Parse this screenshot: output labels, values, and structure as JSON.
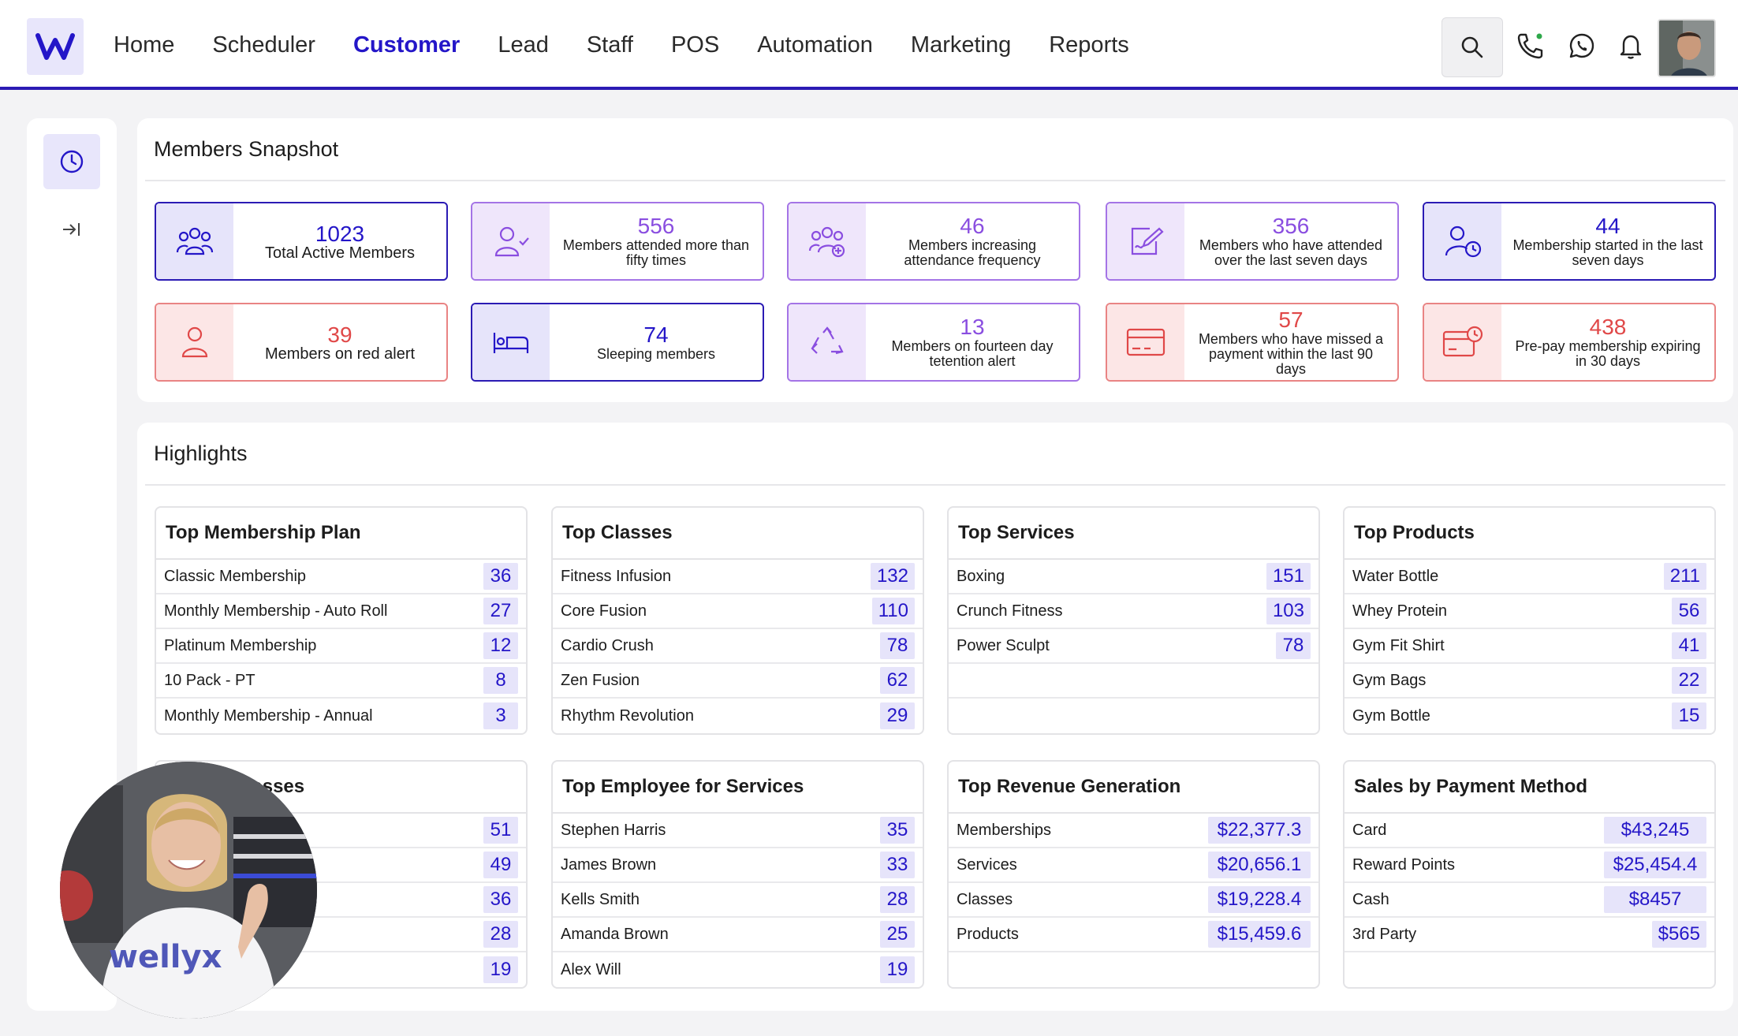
{
  "nav": {
    "items": [
      "Home",
      "Scheduler",
      "Customer",
      "Lead",
      "Staff",
      "POS",
      "Automation",
      "Marketing",
      "Reports"
    ],
    "active": "Customer"
  },
  "snapshot": {
    "title": "Members Snapshot",
    "cards": [
      {
        "value": "1023",
        "label": "Total Active Members",
        "color": "blue",
        "icon": "members-group-icon"
      },
      {
        "value": "556",
        "label": "Members attended more than fifty times",
        "color": "purple",
        "icon": "user-check-icon"
      },
      {
        "value": "46",
        "label": "Members increasing attendance frequency",
        "color": "purple",
        "icon": "users-plus-icon"
      },
      {
        "value": "356",
        "label": "Members who have attended over the last seven days",
        "color": "purple",
        "icon": "signature-icon"
      },
      {
        "value": "44",
        "label": "Membership started in the last seven days",
        "color": "blue",
        "icon": "user-clock-icon"
      },
      {
        "value": "39",
        "label": "Members on red alert",
        "color": "red",
        "icon": "user-alert-icon"
      },
      {
        "value": "74",
        "label": "Sleeping members",
        "color": "blue",
        "icon": "bed-icon"
      },
      {
        "value": "13",
        "label": "Members on fourteen day tetention alert",
        "color": "purple",
        "icon": "recycle-icon"
      },
      {
        "value": "57",
        "label": "Members who have missed a payment within the last 90 days",
        "color": "red",
        "icon": "credit-card-icon"
      },
      {
        "value": "438",
        "label": "Pre-pay membership expiring in 30 days",
        "color": "red",
        "icon": "card-clock-icon"
      }
    ]
  },
  "highlights": {
    "title": "Highlights",
    "tables": [
      {
        "title": "Top Membership Plan",
        "rows": [
          {
            "name": "Classic Membership",
            "value": "36"
          },
          {
            "name": "Monthly Membership - Auto Roll",
            "value": "27"
          },
          {
            "name": "Platinum Membership",
            "value": "12"
          },
          {
            "name": "10 Pack - PT",
            "value": "8"
          },
          {
            "name": "Monthly Membership - Annual",
            "value": "3"
          }
        ]
      },
      {
        "title": "Top Classes",
        "rows": [
          {
            "name": "Fitness Infusion",
            "value": "132"
          },
          {
            "name": "Core Fusion",
            "value": "110"
          },
          {
            "name": "Cardio Crush",
            "value": "78"
          },
          {
            "name": "Zen Fusion",
            "value": "62"
          },
          {
            "name": "Rhythm Revolution",
            "value": "29"
          }
        ]
      },
      {
        "title": "Top Services",
        "rows": [
          {
            "name": "Boxing",
            "value": "151"
          },
          {
            "name": "Crunch Fitness",
            "value": "103"
          },
          {
            "name": "Power Sculpt",
            "value": "78"
          },
          {
            "name": "",
            "value": ""
          },
          {
            "name": "",
            "value": ""
          }
        ]
      },
      {
        "title": "Top Products",
        "rows": [
          {
            "name": "Water Bottle",
            "value": "211"
          },
          {
            "name": "Whey Protein",
            "value": "56"
          },
          {
            "name": "Gym Fit Shirt",
            "value": "41"
          },
          {
            "name": "Gym Bags",
            "value": "22"
          },
          {
            "name": "Gym Bottle",
            "value": "15"
          }
        ]
      },
      {
        "title": "ees for Classes",
        "rows": [
          {
            "name": "",
            "value": "51"
          },
          {
            "name": "",
            "value": "49"
          },
          {
            "name": "",
            "value": "36"
          },
          {
            "name": "",
            "value": "28"
          },
          {
            "name": "",
            "value": "19"
          }
        ]
      },
      {
        "title": "Top Employee for Services",
        "rows": [
          {
            "name": "Stephen Harris",
            "value": "35"
          },
          {
            "name": "James Brown",
            "value": "33"
          },
          {
            "name": "Kells Smith",
            "value": "28"
          },
          {
            "name": "Amanda Brown",
            "value": "25"
          },
          {
            "name": "Alex Will",
            "value": "19"
          }
        ]
      },
      {
        "title": "Top Revenue Generation",
        "rows": [
          {
            "name": "Memberships",
            "value": "$22,377.3"
          },
          {
            "name": "Services",
            "value": "$20,656.1"
          },
          {
            "name": "Classes",
            "value": "$19,228.4"
          },
          {
            "name": "Products",
            "value": "$15,459.6"
          },
          {
            "name": "",
            "value": ""
          }
        ]
      },
      {
        "title": "Sales by Payment Method",
        "rows": [
          {
            "name": "Card",
            "value": "$43,245"
          },
          {
            "name": "Reward Points",
            "value": "$25,454.4"
          },
          {
            "name": "Cash",
            "value": "$8457"
          },
          {
            "name": "3rd Party",
            "value": "$565"
          },
          {
            "name": "",
            "value": ""
          }
        ]
      }
    ]
  },
  "webcam": {
    "shirt_text": "wellyx"
  },
  "colors": {
    "brand": "#2b1bb4",
    "accent_purple": "#a474e6",
    "alert_red": "#e98484"
  }
}
